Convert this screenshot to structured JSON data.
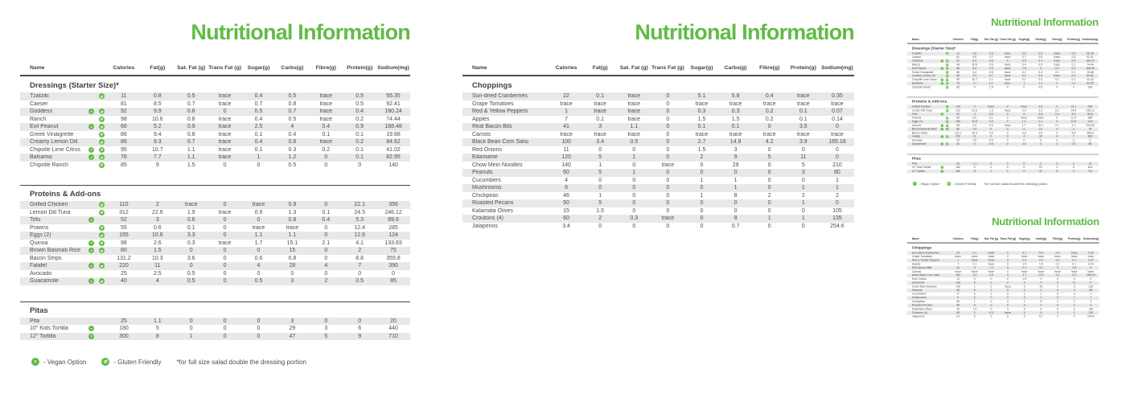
{
  "title": "Nutritional Information",
  "colors": {
    "accent_green": "#62bb46",
    "row_shade": "#e8e8e8",
    "text_dark": "#414042"
  },
  "columns": [
    "Name",
    "Calories",
    "Fat(g)",
    "Sat. Fat (g)",
    "Trans Fat (g)",
    "Sugar(g)",
    "Carbs(g)",
    "Fibre(g)",
    "Protein(g)",
    "Sodium(mg)"
  ],
  "legend": {
    "vegan_symbol": "v",
    "vegan_label": "- Vegan Option",
    "gluten_symbol": "gf",
    "gluten_label": "- Gluten Friendly",
    "note": "*for full size salad double the dressing portion"
  },
  "pages": {
    "page1": {
      "sections": [
        {
          "heading": "Dressings (Starter Size)*",
          "rows": [
            {
              "name": "Tzatziki",
              "vegan": false,
              "gluten_friendly": true,
              "values": [
                "11",
                "0.8",
                "0.5",
                "trace",
                "0.4",
                "0.5",
                "trace",
                "0.5",
                "55.35"
              ]
            },
            {
              "name": "Caeser",
              "vegan": false,
              "gluten_friendly": false,
              "values": [
                "81",
                "8.5",
                "0.7",
                "trace",
                "0.7",
                "0.8",
                "trace",
                "0.5",
                "92.41"
              ]
            },
            {
              "name": "Goddess",
              "vegan": true,
              "gluten_friendly": true,
              "values": [
                "92",
                "9.9",
                "0.8",
                "0",
                "0.5",
                "0.7",
                "trace",
                "0.4",
                "180.24"
              ]
            },
            {
              "name": "Ranch",
              "vegan": false,
              "gluten_friendly": true,
              "values": [
                "98",
                "10.6",
                "0.8",
                "trace",
                "0.4",
                "0.5",
                "trace",
                "0.2",
                "74.44"
              ]
            },
            {
              "name": "Evil Peanut",
              "vegan": true,
              "gluten_friendly": true,
              "values": [
                "66",
                "5.2",
                "0.9",
                "trace",
                "2.5",
                "4",
                "0.4",
                "0.9",
                "168.48"
              ]
            },
            {
              "name": "Greek Vinaigrette",
              "vegan": false,
              "gluten_friendly": true,
              "values": [
                "86",
                "9.4",
                "0.8",
                "trace",
                "0.1",
                "0.4",
                "0.1",
                "0.1",
                "19.88"
              ]
            },
            {
              "name": "Creamy Lemon Dill",
              "vegan": false,
              "gluten_friendly": true,
              "values": [
                "86",
                "9.3",
                "0.7",
                "trace",
                "0.4",
                "0.6",
                "trace",
                "0.2",
                "84.62"
              ]
            },
            {
              "name": "Chipotle Lime Citrus",
              "vegan": true,
              "gluten_friendly": true,
              "values": [
                "95",
                "10.7",
                "1.1",
                "trace",
                "0.1",
                "0.3",
                "0.2",
                "0.1",
                "41.02"
              ]
            },
            {
              "name": "Balsamic",
              "vegan": true,
              "gluten_friendly": true,
              "values": [
                "76",
                "7.7",
                "1.1",
                "trace",
                "1",
                "1.2",
                "0",
                "0.1",
                "82.95"
              ]
            },
            {
              "name": "Chipotle Ranch",
              "vegan": false,
              "gluten_friendly": true,
              "values": [
                "85",
                "9",
                "1.5",
                "0",
                "0",
                "0.5",
                "0",
                "0",
                "140"
              ]
            }
          ]
        },
        {
          "heading": "Proteins & Add-ons",
          "rows": [
            {
              "name": "Grilled Chicken",
              "vegan": false,
              "gluten_friendly": true,
              "values": [
                "110",
                "2",
                "trace",
                "0",
                "trace",
                "0.9",
                "0",
                "22.1",
                "356"
              ]
            },
            {
              "name": "Lemon Dill Tuna",
              "vegan": false,
              "gluten_friendly": true,
              "values": [
                "312",
                "22.6",
                "1.9",
                "trace",
                "0.9",
                "1.3",
                "0.1",
                "24.5",
                "246.12"
              ]
            },
            {
              "name": "Tofu",
              "vegan": true,
              "gluten_friendly": false,
              "values": [
                "52",
                "3",
                "0.6",
                "0",
                "0",
                "0.8",
                "0.4",
                "5.3",
                "89.6"
              ]
            },
            {
              "name": "Prawns",
              "vegan": false,
              "gluten_friendly": true,
              "values": [
                "55",
                "0.6",
                "0.1",
                "0",
                "trace",
                "trace",
                "0",
                "12.4",
                "285"
              ]
            },
            {
              "name": "Eggs (2)",
              "vegan": false,
              "gluten_friendly": true,
              "values": [
                "155",
                "10.6",
                "3.3",
                "0",
                "1.1",
                "1.1",
                "0",
                "12.6",
                "124"
              ]
            },
            {
              "name": "Quinoa",
              "vegan": true,
              "gluten_friendly": true,
              "values": [
                "98",
                "2.6",
                "0.3",
                "trace",
                "1.7",
                "15.1",
                "2.1",
                "4.1",
                "133.83"
              ]
            },
            {
              "name": "Brown Basmati Rice",
              "vegan": true,
              "gluten_friendly": true,
              "values": [
                "80",
                "1.5",
                "0",
                "0",
                "0",
                "15",
                "0",
                "2",
                "75"
              ]
            },
            {
              "name": "Bacon Strips",
              "vegan": false,
              "gluten_friendly": false,
              "values": [
                "131.2",
                "10.3",
                "3.6",
                "0",
                "0.6",
                "0.8",
                "0",
                "8.8",
                "355.8"
              ]
            },
            {
              "name": "Falafel",
              "vegan": true,
              "gluten_friendly": true,
              "values": [
                "220",
                "11",
                "0",
                "0",
                "4",
                "28",
                "4",
                "7",
                "390"
              ]
            },
            {
              "name": "Avocado",
              "vegan": false,
              "gluten_friendly": false,
              "values": [
                "25",
                "2.5",
                "0.5",
                "0",
                "0",
                "0",
                "0",
                "0",
                "0"
              ]
            },
            {
              "name": "Guacamole",
              "vegan": true,
              "gluten_friendly": true,
              "values": [
                "40",
                "4",
                "0.5",
                "0",
                "0.5",
                "3",
                "2",
                "0.5",
                "85"
              ]
            }
          ]
        },
        {
          "heading": "Pitas",
          "rows": [
            {
              "name": "Pita",
              "vegan": false,
              "gluten_friendly": false,
              "values": [
                "25",
                "1.1",
                "0",
                "0",
                "0",
                "3",
                "0",
                "0",
                "20"
              ]
            },
            {
              "name": "10\" Kids Tortilla",
              "vegan": true,
              "gluten_friendly": false,
              "values": [
                "180",
                "5",
                "0",
                "0",
                "0",
                "29",
                "3",
                "6",
                "440"
              ]
            },
            {
              "name": "12\" Tortilla",
              "vegan": true,
              "gluten_friendly": false,
              "values": [
                "300",
                "8",
                "1",
                "0",
                "0",
                "47",
                "5",
                "9",
                "710"
              ]
            }
          ]
        }
      ]
    },
    "page2": {
      "sections": [
        {
          "heading": "Choppings",
          "rows": [
            {
              "name": "Sun-dried Cranberries",
              "vegan": false,
              "gluten_friendly": false,
              "values": [
                "22",
                "0.1",
                "trace",
                "0",
                "5.1",
                "5.8",
                "0.4",
                "trace",
                "0.35"
              ]
            },
            {
              "name": "Grape Tomatoes",
              "vegan": false,
              "gluten_friendly": false,
              "values": [
                "trace",
                "trace",
                "trace",
                "0",
                "trace",
                "trace",
                "trace",
                "trace",
                "trace"
              ]
            },
            {
              "name": "Red & Yellow Peppers",
              "vegan": false,
              "gluten_friendly": false,
              "values": [
                "1",
                "trace",
                "trace",
                "0",
                "0.3",
                "0.3",
                "0.2",
                "0.1",
                "0.07"
              ]
            },
            {
              "name": "Apples",
              "vegan": false,
              "gluten_friendly": false,
              "values": [
                "7",
                "0.1",
                "trace",
                "0",
                "1.5",
                "1.5",
                "0.2",
                "0.1",
                "0.14"
              ]
            },
            {
              "name": "Real Bacon Bits",
              "vegan": false,
              "gluten_friendly": false,
              "values": [
                "41",
                "3",
                "1.1",
                "0",
                "0.1",
                "0.1",
                "0",
                "3.5",
                "0"
              ]
            },
            {
              "name": "Carrots",
              "vegan": false,
              "gluten_friendly": false,
              "values": [
                "trace",
                "trace",
                "trace",
                "0",
                "trace",
                "trace",
                "trace",
                "trace",
                "trace"
              ]
            },
            {
              "name": "Black Bean Corn Salsa",
              "vegan": false,
              "gluten_friendly": false,
              "values": [
                "100",
                "3.4",
                "0.5",
                "0",
                "2.7",
                "14.9",
                "4.2",
                "3.9",
                "165.18"
              ]
            },
            {
              "name": "Red Onions",
              "vegan": false,
              "gluten_friendly": false,
              "values": [
                "11",
                "0",
                "0",
                "0",
                "1.5",
                "3",
                "0",
                "0",
                "0"
              ]
            },
            {
              "name": "Edamame",
              "vegan": false,
              "gluten_friendly": false,
              "values": [
                "120",
                "5",
                "1",
                "0",
                "2",
                "9",
                "5",
                "11",
                "0"
              ]
            },
            {
              "name": "Chow Mein Noodles",
              "vegan": false,
              "gluten_friendly": false,
              "values": [
                "140",
                "1",
                "0",
                "trace",
                "0",
                "29",
                "0",
                "5",
                "210"
              ]
            },
            {
              "name": "Peanuts",
              "vegan": false,
              "gluten_friendly": false,
              "values": [
                "60",
                "5",
                "1",
                "0",
                "0",
                "0",
                "0",
                "3",
                "80"
              ]
            },
            {
              "name": "Cucumbers",
              "vegan": false,
              "gluten_friendly": false,
              "values": [
                "4",
                "0",
                "0",
                "0",
                "1",
                "1",
                "0",
                "0",
                "1"
              ]
            },
            {
              "name": "Mushrooms",
              "vegan": false,
              "gluten_friendly": false,
              "values": [
                "6",
                "0",
                "0",
                "0",
                "0",
                "1",
                "0",
                "1",
                "1"
              ]
            },
            {
              "name": "Chickpeas",
              "vegan": false,
              "gluten_friendly": false,
              "values": [
                "46",
                "1",
                "0",
                "0",
                "1",
                "8",
                "2",
                "2",
                "2"
              ]
            },
            {
              "name": "Roasted Pecans",
              "vegan": false,
              "gluten_friendly": false,
              "values": [
                "50",
                "5",
                "0",
                "0",
                "0",
                "0",
                "0",
                "1",
                "0"
              ]
            },
            {
              "name": "Kalamata Olives",
              "vegan": false,
              "gluten_friendly": false,
              "values": [
                "15",
                "1.5",
                "0",
                "0",
                "0",
                "0",
                "0",
                "0",
                "105"
              ]
            },
            {
              "name": "Croutons (4)",
              "vegan": false,
              "gluten_friendly": false,
              "values": [
                "60",
                "2",
                "0.3",
                "trace",
                "0",
                "8",
                "1",
                "1",
                "135"
              ]
            },
            {
              "name": "Jalapenos",
              "vegan": false,
              "gluten_friendly": false,
              "values": [
                "3.4",
                "0",
                "0",
                "0",
                "0",
                "0.7",
                "0",
                "0",
                "254.6"
              ]
            }
          ]
        }
      ]
    }
  }
}
